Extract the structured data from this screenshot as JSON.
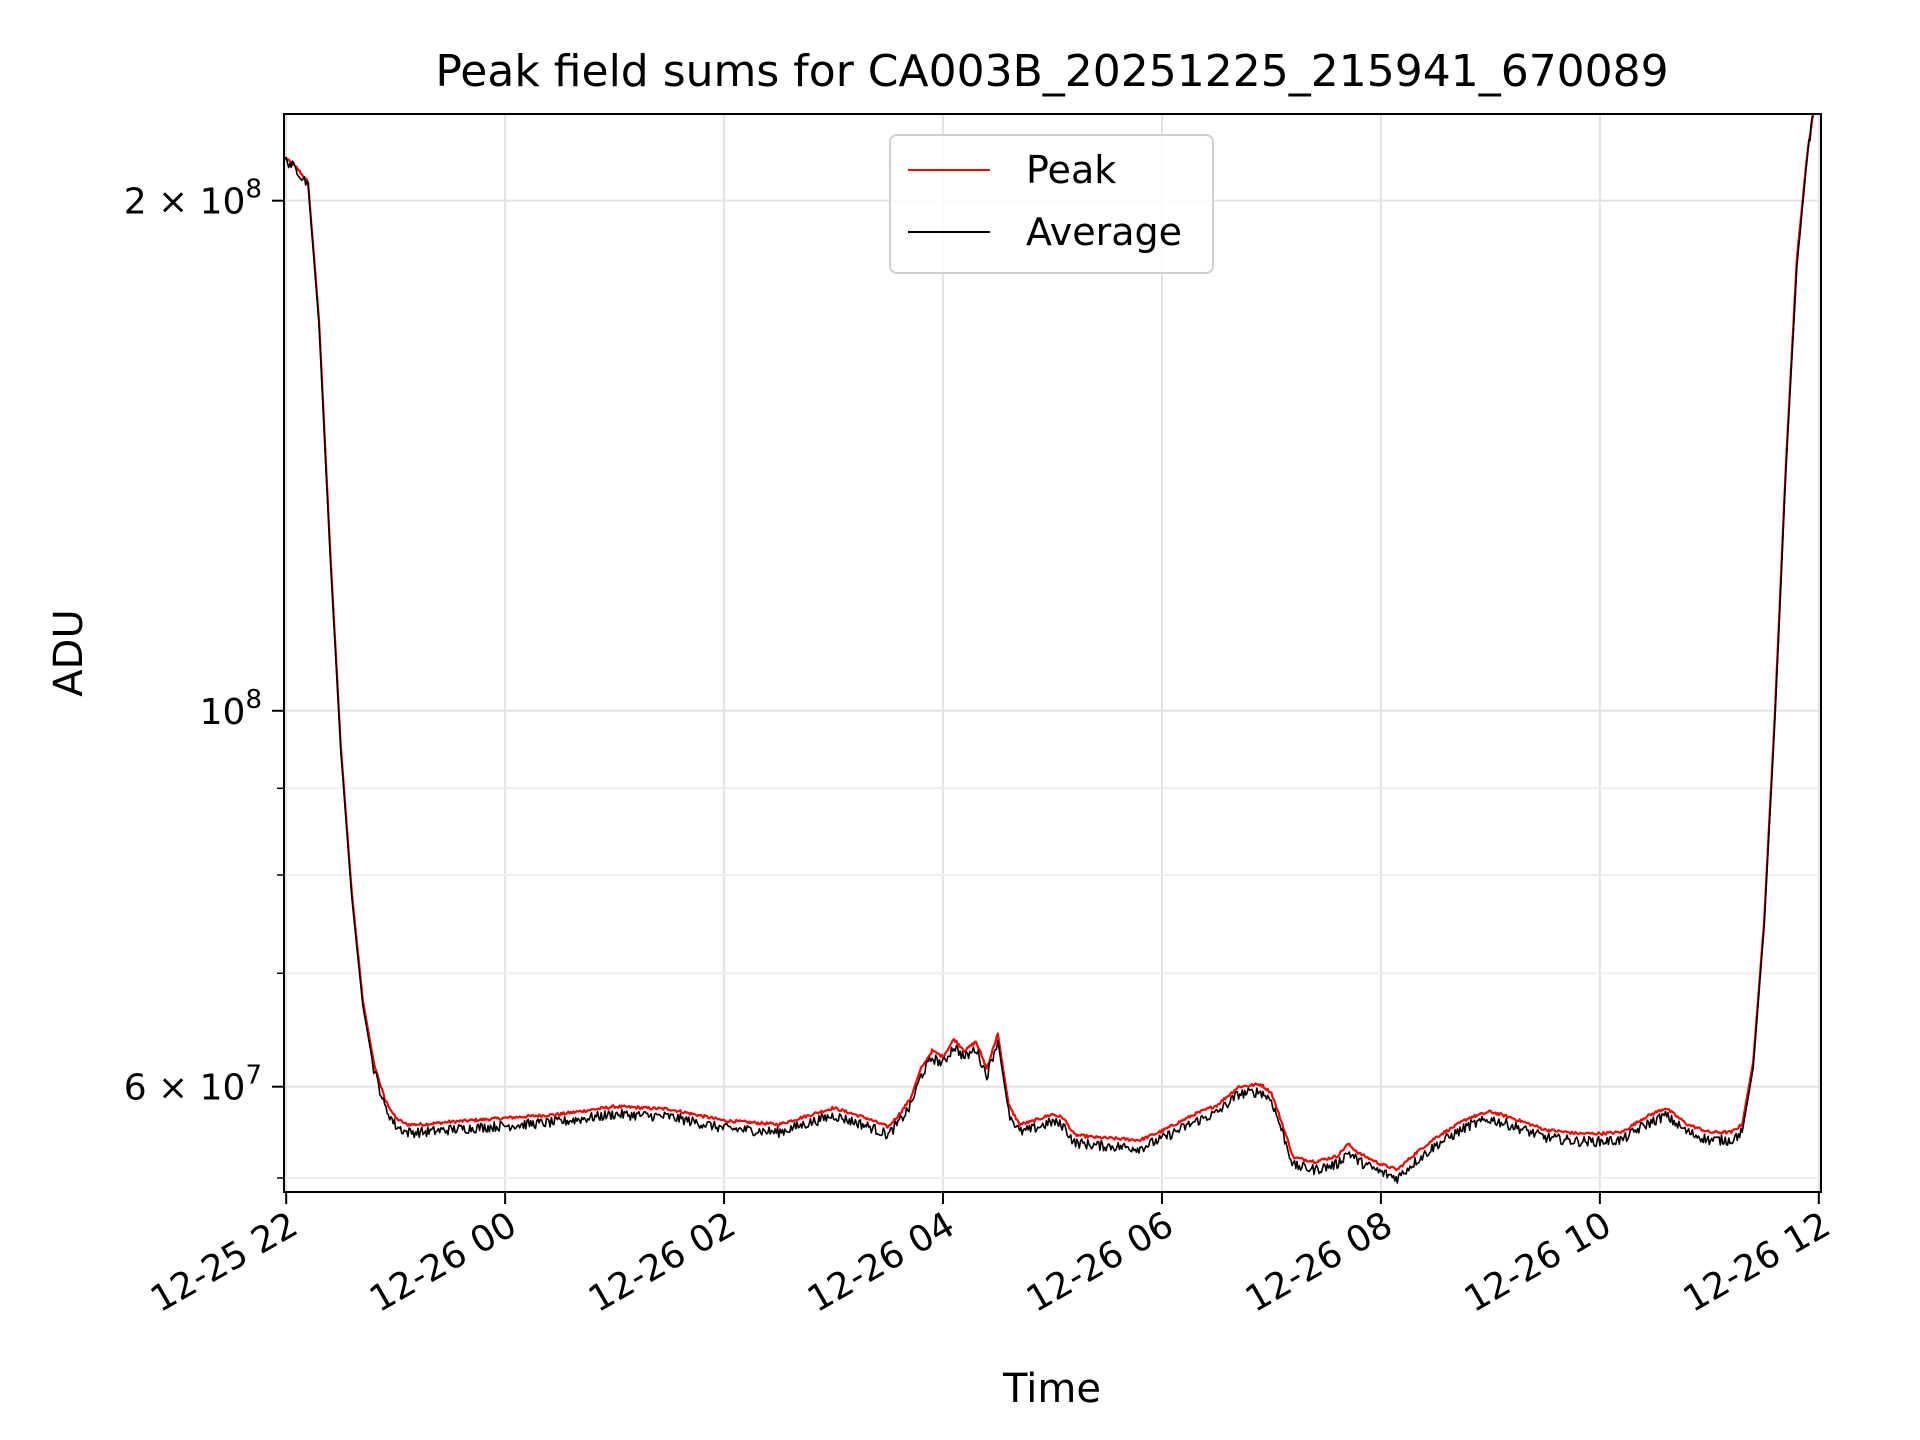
{
  "chart_data": {
    "type": "line",
    "title": "Peak field sums for CA003B_20251225_215941_670089",
    "xlabel": "Time",
    "ylabel": "ADU",
    "yscale": "log",
    "xlim": [
      21.98,
      36.02
    ],
    "ylim": [
      52000000.0,
      225000000.0
    ],
    "grid": true,
    "legend_position": "top-center",
    "x_ticks": [
      {
        "value": 22,
        "label": "12-25 22"
      },
      {
        "value": 24,
        "label": "12-26 00"
      },
      {
        "value": 26,
        "label": "12-26 02"
      },
      {
        "value": 28,
        "label": "12-26 04"
      },
      {
        "value": 30,
        "label": "12-26 06"
      },
      {
        "value": 32,
        "label": "12-26 08"
      },
      {
        "value": 34,
        "label": "12-26 10"
      },
      {
        "value": 36,
        "label": "12-26 12"
      }
    ],
    "y_major_ticks": [
      {
        "value": 60000000,
        "mantissa": "6",
        "exponent": "7"
      },
      {
        "value": 100000000,
        "mantissa": "",
        "exponent": "8"
      },
      {
        "value": 200000000,
        "mantissa": "2",
        "exponent": "8"
      }
    ],
    "y_minor_ticks": [
      53000000,
      70000000,
      80000000,
      90000000
    ],
    "series": [
      {
        "name": "Peak",
        "color": "#ff0000",
        "x": [
          21.99,
          22.1,
          22.2,
          22.3,
          22.4,
          22.5,
          22.6,
          22.7,
          22.8,
          22.9,
          23.0,
          23.1,
          23.25,
          23.5,
          24.0,
          24.5,
          25.0,
          25.5,
          26.0,
          26.5,
          27.0,
          27.3,
          27.5,
          27.6,
          27.7,
          27.8,
          27.9,
          28.0,
          28.1,
          28.2,
          28.3,
          28.4,
          28.5,
          28.6,
          28.7,
          28.8,
          29.0,
          29.1,
          29.2,
          29.4,
          29.6,
          29.8,
          30.0,
          30.3,
          30.5,
          30.7,
          30.9,
          31.0,
          31.1,
          31.2,
          31.4,
          31.6,
          31.7,
          31.8,
          32.0,
          32.15,
          32.3,
          32.5,
          32.8,
          33.0,
          33.2,
          33.5,
          33.8,
          34.0,
          34.2,
          34.4,
          34.6,
          34.8,
          35.0,
          35.2,
          35.3,
          35.4,
          35.5,
          35.6,
          35.7,
          35.8,
          35.9,
          35.95
        ],
        "y": [
          212000000,
          209000000,
          205000000,
          170000000,
          125000000,
          95000000,
          78000000,
          67500000,
          62000000,
          59000000,
          57500000,
          57000000,
          57000000,
          57200000,
          57500000,
          57800000,
          58400000,
          58200000,
          57300000,
          57000000,
          58300000,
          57500000,
          56800000,
          57800000,
          59000000,
          61500000,
          63000000,
          62500000,
          64000000,
          63000000,
          63800000,
          61500000,
          64500000,
          58500000,
          57000000,
          57200000,
          57800000,
          57500000,
          56200000,
          56000000,
          55900000,
          55800000,
          56500000,
          57800000,
          58500000,
          60000000,
          60200000,
          59500000,
          57000000,
          54500000,
          54200000,
          54600000,
          55500000,
          54800000,
          54000000,
          53600000,
          54700000,
          56000000,
          57500000,
          58000000,
          57500000,
          56600000,
          56300000,
          56300000,
          56400000,
          57500000,
          58300000,
          57000000,
          56400000,
          56400000,
          57000000,
          62000000,
          75000000,
          100000000,
          140000000,
          185000000,
          215000000,
          225000000
        ]
      },
      {
        "name": "Average",
        "color": "#000000",
        "x": [
          21.99,
          22.1,
          22.2,
          22.3,
          22.4,
          22.5,
          22.6,
          22.7,
          22.8,
          22.9,
          23.0,
          23.1,
          23.25,
          23.5,
          24.0,
          24.5,
          25.0,
          25.5,
          26.0,
          26.5,
          27.0,
          27.3,
          27.5,
          27.6,
          27.7,
          27.8,
          27.9,
          28.0,
          28.1,
          28.2,
          28.3,
          28.4,
          28.5,
          28.6,
          28.7,
          28.8,
          29.0,
          29.1,
          29.2,
          29.4,
          29.6,
          29.8,
          30.0,
          30.3,
          30.5,
          30.7,
          30.9,
          31.0,
          31.1,
          31.2,
          31.4,
          31.6,
          31.7,
          31.8,
          32.0,
          32.15,
          32.3,
          32.5,
          32.8,
          33.0,
          33.2,
          33.5,
          33.8,
          34.0,
          34.2,
          34.4,
          34.6,
          34.8,
          35.0,
          35.2,
          35.3,
          35.4,
          35.5,
          35.6,
          35.7,
          35.8,
          35.85,
          35.9,
          35.95
        ],
        "y": [
          211500000,
          208500000,
          204500000,
          169000000,
          124000000,
          94500000,
          77500000,
          67000000,
          61500000,
          58400000,
          56900000,
          56400000,
          56400000,
          56600000,
          56900000,
          57200000,
          57800000,
          57600000,
          56700000,
          56400000,
          57700000,
          56900000,
          56200000,
          57200000,
          58400000,
          60900000,
          62400000,
          61900000,
          63400000,
          62400000,
          63200000,
          60900000,
          63900000,
          57900000,
          56400000,
          56600000,
          57200000,
          56900000,
          55600000,
          55400000,
          55300000,
          55200000,
          55900000,
          57200000,
          57900000,
          59400000,
          59600000,
          58900000,
          56400000,
          53900000,
          53600000,
          54000000,
          54900000,
          54200000,
          53400000,
          53000000,
          54100000,
          55400000,
          56900000,
          57400000,
          56900000,
          56000000,
          55700000,
          55700000,
          55800000,
          56900000,
          57700000,
          56400000,
          55800000,
          55800000,
          56400000,
          61500000,
          74500000,
          99000000,
          139000000,
          183000000,
          198000000,
          214000000,
          225000000
        ]
      }
    ]
  }
}
